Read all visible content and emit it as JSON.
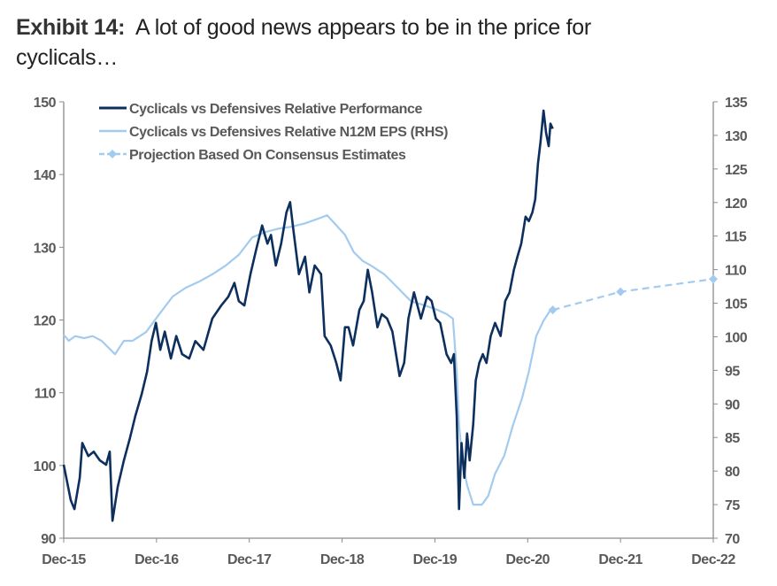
{
  "title": {
    "label": "Exhibit 14:",
    "text": "A lot of good news appears to be in the price for cyclicals…"
  },
  "chart_data": {
    "type": "line",
    "title": "A lot of good news appears to be in the price for cyclicals…",
    "x_ticks": [
      "Dec-15",
      "Dec-16",
      "Dec-17",
      "Dec-18",
      "Dec-19",
      "Dec-20",
      "Dec-21",
      "Dec-22"
    ],
    "xlim": [
      "2015-12-01",
      "2022-12-01"
    ],
    "y_left": {
      "ylim": [
        90,
        150
      ],
      "ticks": [
        90,
        100,
        110,
        120,
        130,
        140,
        150
      ]
    },
    "y_right": {
      "ylim": [
        70,
        135
      ],
      "ticks": [
        70,
        75,
        80,
        85,
        90,
        95,
        100,
        105,
        110,
        115,
        120,
        125,
        130,
        135
      ]
    },
    "grid": false,
    "legend_position": "top-left",
    "colors": {
      "dark": "#0d2f5e",
      "light": "#a3cbef",
      "axis": "#8c8c8c"
    },
    "series": [
      {
        "name": "Cyclicals vs Defensives Relative Performance",
        "axis": "left",
        "style": "solid",
        "points": [
          [
            "2015-12-01",
            100.1
          ],
          [
            "2015-12-29",
            95.2
          ],
          [
            "2016-01-12",
            94.0
          ],
          [
            "2016-02-02",
            98.3
          ],
          [
            "2016-02-12",
            103.1
          ],
          [
            "2016-03-07",
            101.3
          ],
          [
            "2016-03-28",
            101.9
          ],
          [
            "2016-04-21",
            100.7
          ],
          [
            "2016-05-16",
            100.1
          ],
          [
            "2016-05-30",
            101.9
          ],
          [
            "2016-06-10",
            92.4
          ],
          [
            "2016-07-01",
            97.1
          ],
          [
            "2016-07-25",
            100.7
          ],
          [
            "2016-08-18",
            103.8
          ],
          [
            "2016-09-08",
            106.8
          ],
          [
            "2016-10-03",
            109.8
          ],
          [
            "2016-10-24",
            112.9
          ],
          [
            "2016-11-11",
            117.1
          ],
          [
            "2016-11-28",
            119.6
          ],
          [
            "2016-12-15",
            115.9
          ],
          [
            "2017-01-02",
            118.4
          ],
          [
            "2017-01-26",
            114.7
          ],
          [
            "2017-02-16",
            117.8
          ],
          [
            "2017-03-11",
            115.3
          ],
          [
            "2017-04-08",
            114.7
          ],
          [
            "2017-05-02",
            117.1
          ],
          [
            "2017-06-03",
            115.9
          ],
          [
            "2017-07-08",
            120.2
          ],
          [
            "2017-08-12",
            122.0
          ],
          [
            "2017-09-09",
            123.2
          ],
          [
            "2017-10-03",
            125.1
          ],
          [
            "2017-10-20",
            122.6
          ],
          [
            "2017-11-11",
            122.0
          ],
          [
            "2017-12-05",
            126.3
          ],
          [
            "2017-12-29",
            129.9
          ],
          [
            "2018-01-20",
            133.0
          ],
          [
            "2018-02-10",
            130.5
          ],
          [
            "2018-02-24",
            131.7
          ],
          [
            "2018-03-15",
            127.5
          ],
          [
            "2018-04-05",
            130.5
          ],
          [
            "2018-04-26",
            134.8
          ],
          [
            "2018-05-10",
            136.2
          ],
          [
            "2018-05-23",
            132.4
          ],
          [
            "2018-06-14",
            126.3
          ],
          [
            "2018-07-08",
            128.7
          ],
          [
            "2018-07-25",
            123.8
          ],
          [
            "2018-08-15",
            127.5
          ],
          [
            "2018-09-09",
            126.3
          ],
          [
            "2018-09-23",
            117.8
          ],
          [
            "2018-10-17",
            116.5
          ],
          [
            "2018-11-08",
            114.1
          ],
          [
            "2018-11-25",
            111.7
          ],
          [
            "2018-12-12",
            119.0
          ],
          [
            "2018-12-26",
            119.0
          ],
          [
            "2019-01-13",
            116.5
          ],
          [
            "2019-02-07",
            121.4
          ],
          [
            "2019-02-24",
            122.6
          ],
          [
            "2019-03-12",
            126.9
          ],
          [
            "2019-03-29",
            123.8
          ],
          [
            "2019-04-19",
            119.0
          ],
          [
            "2019-05-06",
            120.8
          ],
          [
            "2019-05-27",
            120.2
          ],
          [
            "2019-06-17",
            118.4
          ],
          [
            "2019-07-15",
            112.3
          ],
          [
            "2019-08-02",
            114.1
          ],
          [
            "2019-08-19",
            120.2
          ],
          [
            "2019-09-10",
            123.8
          ],
          [
            "2019-10-07",
            120.2
          ],
          [
            "2019-10-31",
            123.2
          ],
          [
            "2019-11-18",
            122.6
          ],
          [
            "2019-12-05",
            120.2
          ],
          [
            "2019-12-22",
            119.6
          ],
          [
            "2020-01-16",
            115.3
          ],
          [
            "2020-02-03",
            114.1
          ],
          [
            "2020-02-14",
            115.3
          ],
          [
            "2020-02-25",
            106.8
          ],
          [
            "2020-03-05",
            94.0
          ],
          [
            "2020-03-15",
            103.1
          ],
          [
            "2020-03-26",
            98.3
          ],
          [
            "2020-04-06",
            104.4
          ],
          [
            "2020-04-16",
            100.7
          ],
          [
            "2020-04-30",
            105.6
          ],
          [
            "2020-05-10",
            111.7
          ],
          [
            "2020-05-24",
            114.1
          ],
          [
            "2020-06-07",
            115.3
          ],
          [
            "2020-06-21",
            114.1
          ],
          [
            "2020-07-08",
            117.8
          ],
          [
            "2020-07-25",
            119.6
          ],
          [
            "2020-08-16",
            117.8
          ],
          [
            "2020-09-03",
            122.6
          ],
          [
            "2020-09-20",
            123.8
          ],
          [
            "2020-10-07",
            126.9
          ],
          [
            "2020-10-21",
            128.7
          ],
          [
            "2020-11-05",
            130.5
          ],
          [
            "2020-11-22",
            134.2
          ],
          [
            "2020-12-05",
            133.6
          ],
          [
            "2020-12-19",
            134.8
          ],
          [
            "2020-12-30",
            136.6
          ],
          [
            "2021-01-10",
            141.5
          ],
          [
            "2021-01-20",
            144.5
          ],
          [
            "2021-02-01",
            148.8
          ],
          [
            "2021-02-11",
            145.7
          ],
          [
            "2021-02-21",
            143.9
          ],
          [
            "2021-02-28",
            147.0
          ],
          [
            "2021-03-09",
            146.3
          ]
        ]
      },
      {
        "name": "Cyclicals vs Defensives Relative N12M EPS (RHS)",
        "axis": "right",
        "style": "solid",
        "points": [
          [
            "2015-12-01",
            100.3
          ],
          [
            "2015-12-21",
            99.4
          ],
          [
            "2016-01-15",
            100.1
          ],
          [
            "2016-02-19",
            99.8
          ],
          [
            "2016-03-24",
            100.1
          ],
          [
            "2016-04-28",
            99.4
          ],
          [
            "2016-06-20",
            97.4
          ],
          [
            "2016-07-25",
            99.4
          ],
          [
            "2016-08-28",
            99.4
          ],
          [
            "2016-10-20",
            100.7
          ],
          [
            "2016-12-12",
            103.4
          ],
          [
            "2017-02-02",
            106.0
          ],
          [
            "2017-03-25",
            107.3
          ],
          [
            "2017-05-16",
            108.2
          ],
          [
            "2017-07-08",
            109.3
          ],
          [
            "2017-08-29",
            110.6
          ],
          [
            "2017-10-20",
            112.2
          ],
          [
            "2017-12-12",
            114.8
          ],
          [
            "2018-02-03",
            115.6
          ],
          [
            "2018-03-25",
            116.1
          ],
          [
            "2018-05-16",
            116.4
          ],
          [
            "2018-07-08",
            116.9
          ],
          [
            "2018-08-29",
            117.6
          ],
          [
            "2018-10-03",
            118.1
          ],
          [
            "2018-11-01",
            116.9
          ],
          [
            "2018-12-12",
            115.2
          ],
          [
            "2019-01-16",
            112.6
          ],
          [
            "2019-02-20",
            111.3
          ],
          [
            "2019-03-25",
            110.6
          ],
          [
            "2019-05-16",
            109.3
          ],
          [
            "2019-07-08",
            107.3
          ],
          [
            "2019-08-29",
            105.3
          ],
          [
            "2019-10-20",
            104.7
          ],
          [
            "2019-12-12",
            104.0
          ],
          [
            "2020-01-16",
            103.4
          ],
          [
            "2020-02-10",
            102.7
          ],
          [
            "2020-02-25",
            94.8
          ],
          [
            "2020-03-05",
            86.9
          ],
          [
            "2020-03-18",
            81.6
          ],
          [
            "2020-04-06",
            77.9
          ],
          [
            "2020-04-30",
            75.0
          ],
          [
            "2020-06-03",
            75.0
          ],
          [
            "2020-06-28",
            76.3
          ],
          [
            "2020-07-25",
            79.6
          ],
          [
            "2020-08-30",
            82.3
          ],
          [
            "2020-10-04",
            86.9
          ],
          [
            "2020-11-08",
            90.8
          ],
          [
            "2020-12-05",
            94.8
          ],
          [
            "2021-01-03",
            100.1
          ],
          [
            "2021-02-01",
            102.4
          ],
          [
            "2021-02-25",
            103.8
          ]
        ]
      },
      {
        "name": "Projection Based On Consensus Estimates",
        "axis": "right",
        "style": "dashed-with-markers",
        "points": [
          [
            "2021-03-09",
            104.0
          ],
          [
            "2021-12-01",
            106.7
          ],
          [
            "2022-12-01",
            108.6
          ]
        ]
      }
    ]
  }
}
